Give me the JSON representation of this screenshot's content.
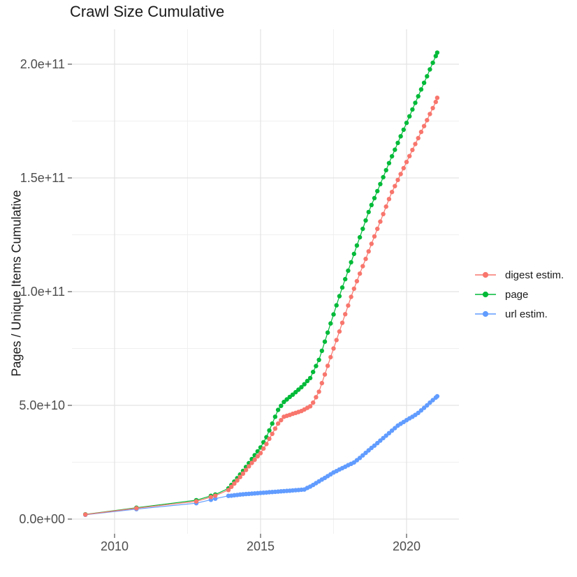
{
  "chart_data": {
    "type": "scatter",
    "title": "Crawl Size Cumulative",
    "xlabel": "",
    "ylabel": "Pages / Unique Items Cumulative",
    "values_unit": "1e9 (billions of pages / unique items)",
    "x_unit": "year",
    "grid": true,
    "legend_position": "right",
    "xlim": [
      2008.5,
      2021.8
    ],
    "ylim": [
      0,
      215000000000.0
    ],
    "y_ticks": [
      {
        "label": "0.0e+00",
        "value": 0
      },
      {
        "label": "5.0e+10",
        "value": 50
      },
      {
        "label": "1.0e+11",
        "value": 100
      },
      {
        "label": "1.5e+11",
        "value": 150
      },
      {
        "label": "2.0e+11",
        "value": 200
      }
    ],
    "x_ticks": [
      {
        "label": "2010",
        "value": 2010
      },
      {
        "label": "2015",
        "value": 2015
      },
      {
        "label": "2020",
        "value": 2020
      }
    ],
    "y_minor": [
      25,
      75,
      125,
      175
    ],
    "x_minor": [
      2012.5,
      2017.5
    ],
    "x": [
      2009.0,
      2010.75,
      2012.8,
      2013.3,
      2013.45,
      2013.9,
      2014.0,
      2014.1,
      2014.2,
      2014.3,
      2014.4,
      2014.5,
      2014.6,
      2014.7,
      2014.8,
      2014.9,
      2015.0,
      2015.1,
      2015.2,
      2015.3,
      2015.4,
      2015.5,
      2015.6,
      2015.7,
      2015.8,
      2015.9,
      2016.0,
      2016.1,
      2016.2,
      2016.3,
      2016.4,
      2016.5,
      2016.6,
      2016.7,
      2016.8,
      2016.9,
      2017.0,
      2017.1,
      2017.2,
      2017.3,
      2017.4,
      2017.5,
      2017.6,
      2017.7,
      2017.8,
      2017.9,
      2018.0,
      2018.1,
      2018.2,
      2018.3,
      2018.4,
      2018.5,
      2018.6,
      2018.7,
      2018.8,
      2018.9,
      2019.0,
      2019.1,
      2019.2,
      2019.3,
      2019.4,
      2019.5,
      2019.6,
      2019.7,
      2019.8,
      2019.9,
      2020.0,
      2020.1,
      2020.2,
      2020.3,
      2020.4,
      2020.5,
      2020.6,
      2020.7,
      2020.8,
      2020.9,
      2021.0,
      2021.05
    ],
    "series": [
      {
        "name": "digest estim.",
        "color": "#F8766D",
        "values": [
          2.0,
          4.8,
          7.8,
          9.7,
          10.3,
          12.8,
          14.2,
          15.6,
          17.0,
          18.5,
          20.0,
          21.6,
          23.2,
          24.7,
          26.1,
          27.6,
          29.0,
          31.0,
          33.0,
          35.3,
          37.5,
          39.8,
          42.0,
          43.5,
          45.0,
          45.4,
          45.8,
          46.3,
          46.7,
          47.1,
          47.5,
          48.2,
          48.9,
          49.6,
          51.2,
          53.6,
          56.0,
          59.8,
          63.6,
          67.4,
          71.2,
          75.0,
          78.7,
          82.5,
          86.3,
          90.1,
          93.9,
          97.7,
          101.3,
          104.6,
          107.9,
          111.2,
          114.4,
          117.7,
          121.0,
          124.3,
          127.6,
          130.8,
          134.1,
          137.4,
          140.7,
          143.8,
          146.4,
          149.1,
          151.7,
          154.3,
          157.0,
          159.6,
          162.3,
          164.9,
          167.5,
          170.2,
          172.8,
          175.4,
          178.1,
          180.7,
          183.4,
          185.2
        ]
      },
      {
        "name": "page",
        "color": "#00BA38",
        "values": [
          2.1,
          5.0,
          8.3,
          10.2,
          10.8,
          13.5,
          15.0,
          16.5,
          18.0,
          19.6,
          21.2,
          22.9,
          24.6,
          26.4,
          28.1,
          29.8,
          31.5,
          33.8,
          36.0,
          39.0,
          42.0,
          45.0,
          48.0,
          49.8,
          51.5,
          52.6,
          53.7,
          54.7,
          55.8,
          56.9,
          58.0,
          59.3,
          60.7,
          62.0,
          64.7,
          67.3,
          70.0,
          74.0,
          78.0,
          82.0,
          86.0,
          90.0,
          94.0,
          98.0,
          101.8,
          105.5,
          109.2,
          112.9,
          116.6,
          120.3,
          123.9,
          127.6,
          131.3,
          135.0,
          138.1,
          141.1,
          144.2,
          147.3,
          150.3,
          153.4,
          156.5,
          159.5,
          162.4,
          165.4,
          168.3,
          171.2,
          174.2,
          177.1,
          180.1,
          183.0,
          185.9,
          188.9,
          191.8,
          194.7,
          197.7,
          200.6,
          203.6,
          205.1
        ]
      },
      {
        "name": "url estim.",
        "color": "#619CFF",
        "values": [
          1.9,
          4.4,
          7.0,
          8.5,
          9.0,
          10.2,
          10.3,
          10.5,
          10.6,
          10.8,
          10.9,
          11.0,
          11.1,
          11.2,
          11.3,
          11.4,
          11.5,
          11.6,
          11.7,
          11.8,
          11.9,
          12.0,
          12.1,
          12.2,
          12.3,
          12.4,
          12.5,
          12.6,
          12.7,
          12.8,
          12.9,
          13.0,
          13.7,
          14.3,
          15.0,
          15.8,
          16.6,
          17.4,
          18.1,
          18.9,
          19.7,
          20.5,
          21.1,
          21.8,
          22.4,
          23.0,
          23.7,
          24.3,
          24.9,
          25.9,
          26.9,
          28.0,
          29.1,
          30.2,
          31.3,
          32.3,
          33.4,
          34.5,
          35.6,
          36.7,
          37.8,
          38.9,
          40.0,
          41.1,
          41.9,
          42.7,
          43.5,
          44.3,
          45.0,
          45.8,
          46.7,
          47.8,
          48.9,
          50.0,
          51.2,
          52.3,
          53.4,
          54.0
        ]
      }
    ],
    "colors": {
      "background": "#ffffff",
      "grid_major": "#e3e3e3",
      "grid_minor": "#efefef",
      "tick": "#333333",
      "tick_label": "#4d4d4d",
      "text": "#1a1a1a"
    }
  },
  "legend": {
    "items": [
      {
        "label": "digest estim."
      },
      {
        "label": "page"
      },
      {
        "label": "url estim."
      }
    ]
  }
}
